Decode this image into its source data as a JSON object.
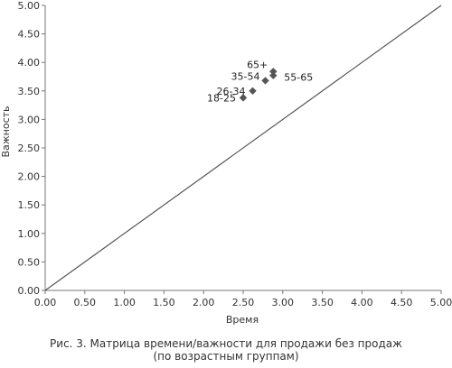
{
  "chart_data": {
    "type": "scatter",
    "xlabel": "Время",
    "ylabel": "Важность",
    "xlim": [
      0,
      5
    ],
    "ylim": [
      0,
      5
    ],
    "x_ticks": [
      "0.00",
      "0.50",
      "1.00",
      "1.50",
      "2.00",
      "2.50",
      "3.00",
      "3.50",
      "4.00",
      "4.50",
      "5.00"
    ],
    "y_ticks": [
      "0.00",
      "0.50",
      "1.00",
      "1.50",
      "2.00",
      "2.50",
      "3.00",
      "3.50",
      "4.00",
      "4.50",
      "5.00"
    ],
    "grid": false,
    "reference_line": {
      "x": [
        0,
        5
      ],
      "y": [
        0,
        5
      ]
    },
    "points": [
      {
        "label": "18-25",
        "x": 2.5,
        "y": 3.38
      },
      {
        "label": "26-34",
        "x": 2.62,
        "y": 3.5
      },
      {
        "label": "35-54",
        "x": 2.78,
        "y": 3.68
      },
      {
        "label": "65+",
        "x": 2.88,
        "y": 3.84
      },
      {
        "label": "55-65",
        "x": 2.88,
        "y": 3.77
      }
    ],
    "marker_color": "#555555"
  },
  "caption": {
    "line1": "Рис. 3. Матрица времени/важности для продажи без продаж",
    "line2": "(по возрастным группам)"
  }
}
